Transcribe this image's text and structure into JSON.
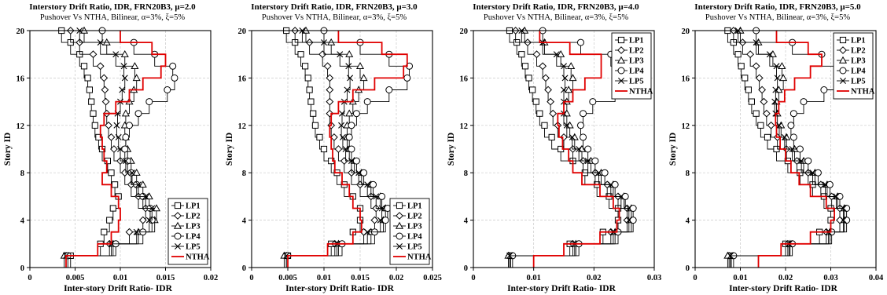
{
  "chart_data": [
    {
      "type": "line",
      "title": "Interstory Drift Ratio, IDR, FRN20B3, μ=2.0",
      "subtitle": "Pushover Vs NTHA, Bilinear, α=3%, ξ=5%",
      "xlabel": "Inter-story Drift Ratio- IDR",
      "ylabel": "Story ID",
      "xlim": [
        0,
        0.02
      ],
      "ylim": [
        0,
        20
      ],
      "xticks": [
        0,
        0.005,
        0.01,
        0.015,
        0.02
      ],
      "xtick_labels": [
        "0",
        "0.005",
        "0.01",
        "0.015",
        "0.02"
      ],
      "yticks": [
        0,
        4,
        8,
        12,
        16,
        20
      ],
      "ytick_labels": [
        "0",
        "4",
        "8",
        "12",
        "16",
        "20"
      ],
      "legend": "bottom-right",
      "grid": true,
      "stories": [
        1,
        2,
        3,
        4,
        5,
        6,
        7,
        8,
        9,
        10,
        11,
        12,
        13,
        14,
        15,
        16,
        17,
        18,
        19,
        20
      ],
      "series": [
        {
          "name": "LP1",
          "color": "#000000",
          "marker": "square",
          "values": [
            0.0045,
            0.0078,
            0.0082,
            0.0088,
            0.0092,
            0.0098,
            0.0094,
            0.009,
            0.0086,
            0.008,
            0.0076,
            0.0072,
            0.007,
            0.0068,
            0.0066,
            0.0064,
            0.006,
            0.0055,
            0.0045,
            0.0035
          ]
        },
        {
          "name": "LP2",
          "color": "#000000",
          "marker": "diamond",
          "values": [
            0.004,
            0.0088,
            0.011,
            0.0125,
            0.0128,
            0.012,
            0.0112,
            0.0105,
            0.01,
            0.0093,
            0.009,
            0.0087,
            0.0085,
            0.0084,
            0.0083,
            0.0082,
            0.0078,
            0.007,
            0.0055,
            0.0045
          ]
        },
        {
          "name": "LP3",
          "color": "#000000",
          "marker": "triangle",
          "values": [
            0.0038,
            0.0092,
            0.012,
            0.0138,
            0.014,
            0.0132,
            0.0125,
            0.0118,
            0.0112,
            0.0108,
            0.0106,
            0.0105,
            0.0106,
            0.011,
            0.0115,
            0.0118,
            0.0116,
            0.0105,
            0.0085,
            0.006
          ]
        },
        {
          "name": "LP4",
          "color": "#000000",
          "marker": "circle",
          "values": [
            0.0042,
            0.0095,
            0.0125,
            0.0135,
            0.0133,
            0.0125,
            0.0118,
            0.0112,
            0.0108,
            0.0105,
            0.0106,
            0.011,
            0.012,
            0.0132,
            0.0152,
            0.016,
            0.0158,
            0.0138,
            0.0115,
            0.008
          ]
        },
        {
          "name": "LP5",
          "color": "#000000",
          "marker": "x",
          "values": [
            0.004,
            0.009,
            0.0118,
            0.0132,
            0.0135,
            0.0128,
            0.012,
            0.0113,
            0.0106,
            0.01,
            0.0098,
            0.0096,
            0.0097,
            0.01,
            0.0102,
            0.0105,
            0.0104,
            0.0095,
            0.0078,
            0.0055
          ]
        },
        {
          "name": "NTHA",
          "color": "#e00000",
          "marker": "none",
          "values": [
            0.004,
            0.0075,
            0.009,
            0.0098,
            0.01,
            0.0098,
            0.009,
            0.008,
            0.0085,
            0.0082,
            0.008,
            0.0078,
            0.0082,
            0.0095,
            0.011,
            0.0125,
            0.0145,
            0.015,
            0.0135,
            0.01
          ]
        }
      ]
    },
    {
      "type": "line",
      "title": "Interstory Drift Ratio, IDR, FRN20B3, μ=3.0",
      "subtitle": "Pushover Vs NTHA, Bilinear, α=3%, ξ=5%",
      "xlabel": "Inter-story Drift Ratio- IDR",
      "ylabel": "Story ID",
      "xlim": [
        0,
        0.025
      ],
      "ylim": [
        0,
        20
      ],
      "xticks": [
        0,
        0.005,
        0.01,
        0.015,
        0.02,
        0.025
      ],
      "xtick_labels": [
        "0",
        "0.005",
        "0.01",
        "0.015",
        "0.02",
        "0.025"
      ],
      "yticks": [
        0,
        4,
        8,
        12,
        16,
        20
      ],
      "ytick_labels": [
        "0",
        "4",
        "8",
        "12",
        "16",
        "20"
      ],
      "legend": "bottom-right",
      "grid": true,
      "stories": [
        1,
        2,
        3,
        4,
        5,
        6,
        7,
        8,
        9,
        10,
        11,
        12,
        13,
        14,
        15,
        16,
        17,
        18,
        19,
        20
      ],
      "series": [
        {
          "name": "LP1",
          "color": "#000000",
          "marker": "square",
          "values": [
            0.005,
            0.011,
            0.014,
            0.015,
            0.015,
            0.014,
            0.0128,
            0.0118,
            0.011,
            0.01,
            0.0094,
            0.0088,
            0.0085,
            0.0082,
            0.008,
            0.0078,
            0.0074,
            0.0068,
            0.006,
            0.0048
          ]
        },
        {
          "name": "LP2",
          "color": "#000000",
          "marker": "diamond",
          "values": [
            0.0048,
            0.0115,
            0.0155,
            0.017,
            0.0172,
            0.0165,
            0.015,
            0.0138,
            0.0128,
            0.012,
            0.0114,
            0.011,
            0.0108,
            0.0108,
            0.0108,
            0.0108,
            0.0105,
            0.0098,
            0.008,
            0.006
          ]
        },
        {
          "name": "LP3",
          "color": "#000000",
          "marker": "triangle",
          "values": [
            0.0045,
            0.012,
            0.0165,
            0.0182,
            0.0185,
            0.0178,
            0.0165,
            0.0152,
            0.0142,
            0.0135,
            0.0132,
            0.0132,
            0.0135,
            0.014,
            0.0148,
            0.0155,
            0.015,
            0.0135,
            0.011,
            0.0075
          ]
        },
        {
          "name": "LP4",
          "color": "#000000",
          "marker": "circle",
          "values": [
            0.005,
            0.0125,
            0.017,
            0.0185,
            0.0188,
            0.018,
            0.0168,
            0.0155,
            0.0145,
            0.0138,
            0.0135,
            0.0138,
            0.0145,
            0.016,
            0.019,
            0.0215,
            0.0218,
            0.019,
            0.015,
            0.01
          ]
        },
        {
          "name": "LP5",
          "color": "#000000",
          "marker": "x",
          "values": [
            0.0048,
            0.0118,
            0.016,
            0.0178,
            0.018,
            0.0172,
            0.016,
            0.0148,
            0.0138,
            0.013,
            0.0126,
            0.0124,
            0.0125,
            0.0128,
            0.0132,
            0.0136,
            0.0134,
            0.0122,
            0.01,
            0.007
          ]
        },
        {
          "name": "NTHA",
          "color": "#e00000",
          "marker": "none",
          "values": [
            0.005,
            0.0105,
            0.014,
            0.0152,
            0.015,
            0.014,
            0.0135,
            0.0125,
            0.0115,
            0.0112,
            0.011,
            0.0108,
            0.011,
            0.012,
            0.014,
            0.017,
            0.021,
            0.0215,
            0.018,
            0.012
          ]
        }
      ]
    },
    {
      "type": "line",
      "title": "Interstory Drift Ratio, IDR, FRN20B3, μ=4.0",
      "subtitle": "Pushover Vs NTHA, Bilinear, α=3%, ξ=5%",
      "xlabel": "Inter-story Drift Ratio- IDR",
      "ylabel": "Story ID",
      "xlim": [
        0,
        0.03
      ],
      "ylim": [
        0,
        20
      ],
      "xticks": [
        0,
        0.01,
        0.02,
        0.03
      ],
      "xtick_labels": [
        "0",
        "0.01",
        "0.02",
        "0.03"
      ],
      "yticks": [
        0,
        4,
        8,
        12,
        16,
        20
      ],
      "ytick_labels": [
        "0",
        "4",
        "8",
        "12",
        "16",
        "20"
      ],
      "legend": "top-right",
      "grid": true,
      "stories": [
        1,
        2,
        3,
        4,
        5,
        6,
        7,
        8,
        9,
        10,
        11,
        12,
        13,
        14,
        15,
        16,
        17,
        18,
        19,
        20
      ],
      "series": [
        {
          "name": "LP1",
          "color": "#000000",
          "marker": "square",
          "values": [
            0.0062,
            0.016,
            0.0215,
            0.024,
            0.024,
            0.0225,
            0.0205,
            0.0185,
            0.0165,
            0.0145,
            0.013,
            0.0118,
            0.011,
            0.0104,
            0.0098,
            0.0092,
            0.0086,
            0.008,
            0.0072,
            0.006
          ]
        },
        {
          "name": "LP2",
          "color": "#000000",
          "marker": "diamond",
          "values": [
            0.006,
            0.0165,
            0.0228,
            0.0255,
            0.0255,
            0.024,
            0.0222,
            0.0202,
            0.0182,
            0.0165,
            0.015,
            0.014,
            0.0132,
            0.0128,
            0.0124,
            0.012,
            0.0115,
            0.0105,
            0.009,
            0.007
          ]
        },
        {
          "name": "LP3",
          "color": "#000000",
          "marker": "triangle",
          "values": [
            0.0058,
            0.017,
            0.0235,
            0.0262,
            0.0262,
            0.025,
            0.0232,
            0.0212,
            0.0195,
            0.018,
            0.0168,
            0.016,
            0.0155,
            0.0155,
            0.0158,
            0.0165,
            0.0162,
            0.0145,
            0.0118,
            0.0085
          ]
        },
        {
          "name": "LP4",
          "color": "#000000",
          "marker": "circle",
          "values": [
            0.0065,
            0.0175,
            0.024,
            0.0265,
            0.0265,
            0.0252,
            0.0235,
            0.0218,
            0.0202,
            0.019,
            0.0182,
            0.0178,
            0.0182,
            0.0198,
            0.0235,
            0.0255,
            0.0258,
            0.0228,
            0.0178,
            0.0115
          ]
        },
        {
          "name": "LP5",
          "color": "#000000",
          "marker": "x",
          "values": [
            0.006,
            0.0168,
            0.0232,
            0.0258,
            0.0258,
            0.0245,
            0.0228,
            0.0208,
            0.019,
            0.0175,
            0.0164,
            0.0155,
            0.015,
            0.015,
            0.015,
            0.0152,
            0.015,
            0.0138,
            0.0115,
            0.008
          ]
        },
        {
          "name": "NTHA",
          "color": "#e00000",
          "marker": "none",
          "values": [
            0.01,
            0.015,
            0.021,
            0.0238,
            0.0242,
            0.0232,
            0.021,
            0.018,
            0.0165,
            0.0158,
            0.0148,
            0.0142,
            0.014,
            0.015,
            0.0165,
            0.0185,
            0.0212,
            0.0212,
            0.016,
            0.011
          ]
        }
      ]
    },
    {
      "type": "line",
      "title": "Interstory Drift Ratio, IDR, FRN20B3, μ=5.0",
      "subtitle": "Pushover Vs NTHA, Bilinear, α=3%, ξ=5%",
      "xlabel": "Inter-story Drift Ratio- IDR",
      "ylabel": "Story ID",
      "xlim": [
        0,
        0.04
      ],
      "ylim": [
        0,
        20
      ],
      "xticks": [
        0,
        0.01,
        0.02,
        0.03,
        0.04
      ],
      "xtick_labels": [
        "0",
        "0.01",
        "0.02",
        "0.03",
        "0.04"
      ],
      "yticks": [
        0,
        4,
        8,
        12,
        16,
        20
      ],
      "ytick_labels": [
        "0",
        "4",
        "8",
        "12",
        "16",
        "20"
      ],
      "legend": "top-right",
      "grid": true,
      "stories": [
        1,
        2,
        3,
        4,
        5,
        6,
        7,
        8,
        9,
        10,
        11,
        12,
        13,
        14,
        15,
        16,
        17,
        18,
        19,
        20
      ],
      "series": [
        {
          "name": "LP1",
          "color": "#000000",
          "marker": "square",
          "values": [
            0.008,
            0.02,
            0.0275,
            0.03,
            0.03,
            0.0285,
            0.026,
            0.0232,
            0.0205,
            0.018,
            0.016,
            0.0145,
            0.0135,
            0.0125,
            0.0118,
            0.011,
            0.0102,
            0.0095,
            0.0085,
            0.0072
          ]
        },
        {
          "name": "LP2",
          "color": "#000000",
          "marker": "diamond",
          "values": [
            0.0075,
            0.0205,
            0.029,
            0.032,
            0.032,
            0.0302,
            0.0278,
            0.025,
            0.0225,
            0.0202,
            0.0182,
            0.0168,
            0.0158,
            0.0152,
            0.0148,
            0.0142,
            0.0135,
            0.0122,
            0.0105,
            0.0085
          ]
        },
        {
          "name": "LP3",
          "color": "#000000",
          "marker": "triangle",
          "values": [
            0.0072,
            0.021,
            0.0298,
            0.033,
            0.033,
            0.0315,
            0.0292,
            0.0265,
            0.024,
            0.022,
            0.0202,
            0.019,
            0.0182,
            0.018,
            0.0185,
            0.0195,
            0.0192,
            0.0172,
            0.014,
            0.01
          ]
        },
        {
          "name": "LP4",
          "color": "#000000",
          "marker": "circle",
          "values": [
            0.0085,
            0.0215,
            0.0302,
            0.0335,
            0.0335,
            0.032,
            0.0298,
            0.0272,
            0.025,
            0.0232,
            0.0218,
            0.0212,
            0.0218,
            0.024,
            0.0285,
            0.0315,
            0.0318,
            0.028,
            0.0215,
            0.0135
          ]
        },
        {
          "name": "LP5",
          "color": "#000000",
          "marker": "x",
          "values": [
            0.0078,
            0.0208,
            0.0295,
            0.0328,
            0.0328,
            0.0312,
            0.0288,
            0.026,
            0.0235,
            0.0215,
            0.0198,
            0.0186,
            0.0178,
            0.0176,
            0.0178,
            0.0182,
            0.018,
            0.0165,
            0.0135,
            0.0095
          ]
        },
        {
          "name": "NTHA",
          "color": "#e00000",
          "marker": "none",
          "values": [
            0.014,
            0.019,
            0.0255,
            0.03,
            0.0308,
            0.029,
            0.0255,
            0.023,
            0.0212,
            0.02,
            0.0188,
            0.018,
            0.0178,
            0.0185,
            0.0198,
            0.022,
            0.0255,
            0.028,
            0.025,
            0.018
          ]
        }
      ]
    }
  ]
}
